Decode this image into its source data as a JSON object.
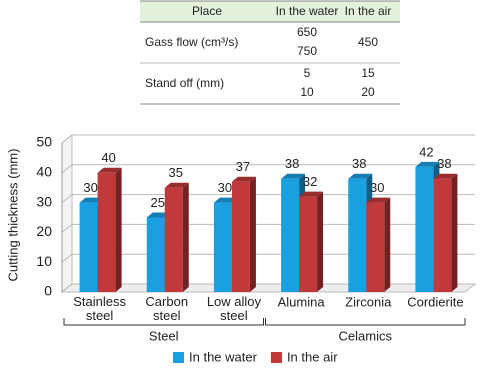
{
  "table": {
    "header": [
      "Place",
      "In the water",
      "In the air"
    ],
    "rows": [
      {
        "label": "Gass flow (cm³/s)",
        "water": [
          "650",
          "750"
        ],
        "air": [
          "450"
        ]
      },
      {
        "label": "Stand off (mm)",
        "water": [
          "5",
          "10"
        ],
        "air": [
          "15",
          "20"
        ]
      }
    ]
  },
  "chart_data": {
    "type": "bar3d",
    "y_label": "Cutting thickness (mm)",
    "categories": [
      "Stainless steel",
      "Carbon steel",
      "Low alloy steel",
      "Alumina",
      "Zirconia",
      "Cordierite"
    ],
    "groups": [
      "Steel",
      "Celamics"
    ],
    "series": [
      {
        "name": "In the water",
        "color": "#1a9fe0",
        "values": [
          30,
          25,
          30,
          38,
          38,
          42
        ]
      },
      {
        "name": "In the air",
        "color": "#c0393b",
        "values": [
          40,
          35,
          37,
          32,
          30,
          38
        ]
      }
    ],
    "ylim": [
      0,
      50
    ],
    "yticks": [
      0,
      10,
      20,
      30,
      40,
      50
    ],
    "grid": true
  }
}
